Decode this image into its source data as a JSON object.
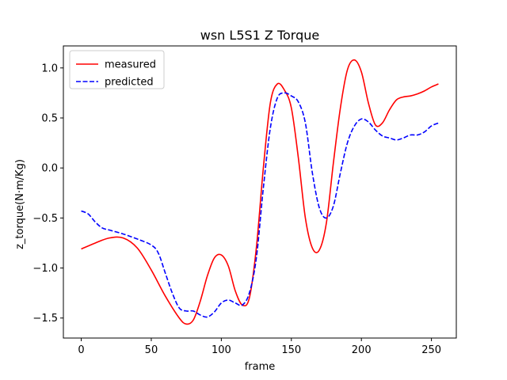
{
  "chart_data": {
    "type": "line",
    "title": "wsn L5S1 Z Torque",
    "xlabel": "frame",
    "ylabel": "z_torque(N·m/Kg)",
    "xlim": [
      -12.75,
      267.75
    ],
    "ylim": [
      -1.7,
      1.22
    ],
    "xticks": [
      0,
      50,
      100,
      150,
      200,
      250
    ],
    "yticks": [
      -1.5,
      -1.0,
      -0.5,
      0.0,
      0.5,
      1.0
    ],
    "ytick_labels": [
      "−1.5",
      "−1.0",
      "−0.5",
      "0.0",
      "0.5",
      "1.0"
    ],
    "grid": false,
    "legend_position": "top-left",
    "series": [
      {
        "name": "measured",
        "color": "#ff0000",
        "style": "solid",
        "x": [
          0,
          10,
          20,
          30,
          40,
          50,
          60,
          70,
          75,
          80,
          85,
          90,
          95,
          100,
          105,
          110,
          115,
          120,
          125,
          130,
          135,
          140,
          145,
          150,
          155,
          160,
          165,
          170,
          175,
          180,
          185,
          190,
          195,
          200,
          205,
          210,
          215,
          220,
          225,
          230,
          235,
          240,
          245,
          250,
          255
        ],
        "y": [
          -0.81,
          -0.75,
          -0.7,
          -0.7,
          -0.8,
          -1.02,
          -1.28,
          -1.5,
          -1.56,
          -1.52,
          -1.33,
          -1.08,
          -0.9,
          -0.87,
          -0.98,
          -1.23,
          -1.37,
          -1.3,
          -0.8,
          0.0,
          0.65,
          0.84,
          0.78,
          0.6,
          0.1,
          -0.5,
          -0.8,
          -0.82,
          -0.55,
          0.05,
          0.6,
          0.98,
          1.08,
          0.96,
          0.65,
          0.43,
          0.45,
          0.58,
          0.68,
          0.71,
          0.72,
          0.74,
          0.77,
          0.81,
          0.84
        ]
      },
      {
        "name": "predicted",
        "color": "#0000ff",
        "style": "dashed",
        "x": [
          0,
          5,
          10,
          15,
          20,
          30,
          40,
          50,
          55,
          60,
          65,
          70,
          75,
          80,
          85,
          90,
          95,
          100,
          105,
          110,
          115,
          120,
          125,
          130,
          135,
          140,
          145,
          150,
          155,
          160,
          165,
          170,
          175,
          180,
          185,
          190,
          195,
          200,
          205,
          210,
          215,
          220,
          225,
          230,
          235,
          240,
          245,
          250,
          255
        ],
        "y": [
          -0.43,
          -0.46,
          -0.54,
          -0.6,
          -0.62,
          -0.66,
          -0.71,
          -0.77,
          -0.85,
          -1.05,
          -1.25,
          -1.4,
          -1.43,
          -1.43,
          -1.47,
          -1.49,
          -1.44,
          -1.35,
          -1.32,
          -1.35,
          -1.37,
          -1.25,
          -0.9,
          -0.2,
          0.4,
          0.7,
          0.75,
          0.72,
          0.66,
          0.45,
          -0.05,
          -0.4,
          -0.5,
          -0.38,
          -0.05,
          0.25,
          0.42,
          0.49,
          0.46,
          0.38,
          0.32,
          0.3,
          0.28,
          0.3,
          0.33,
          0.33,
          0.36,
          0.42,
          0.45
        ]
      }
    ]
  }
}
